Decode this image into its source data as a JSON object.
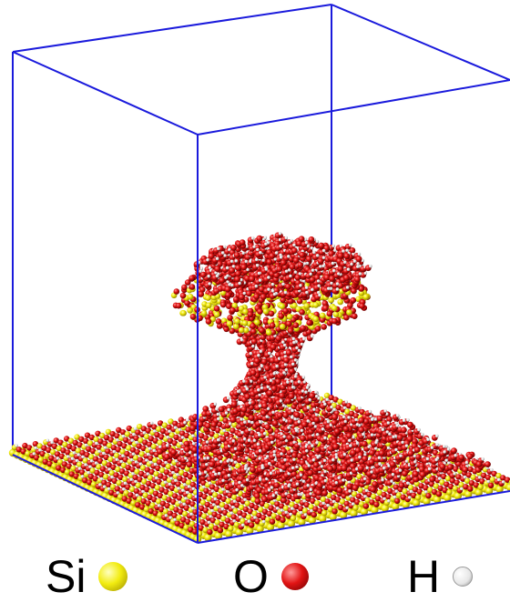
{
  "legend": [
    {
      "symbol": "Si",
      "color": "#f2ec10"
    },
    {
      "symbol": "O",
      "color": "#e21414"
    },
    {
      "symbol": "H",
      "color": "#e6e6e6"
    }
  ],
  "colors": {
    "box_edge": "#1a1adc",
    "silicon": "#f2ec10",
    "oxygen": "#e21414",
    "hydrogen": "#e6e6e6",
    "water_oxygen": "#c8141c"
  }
}
